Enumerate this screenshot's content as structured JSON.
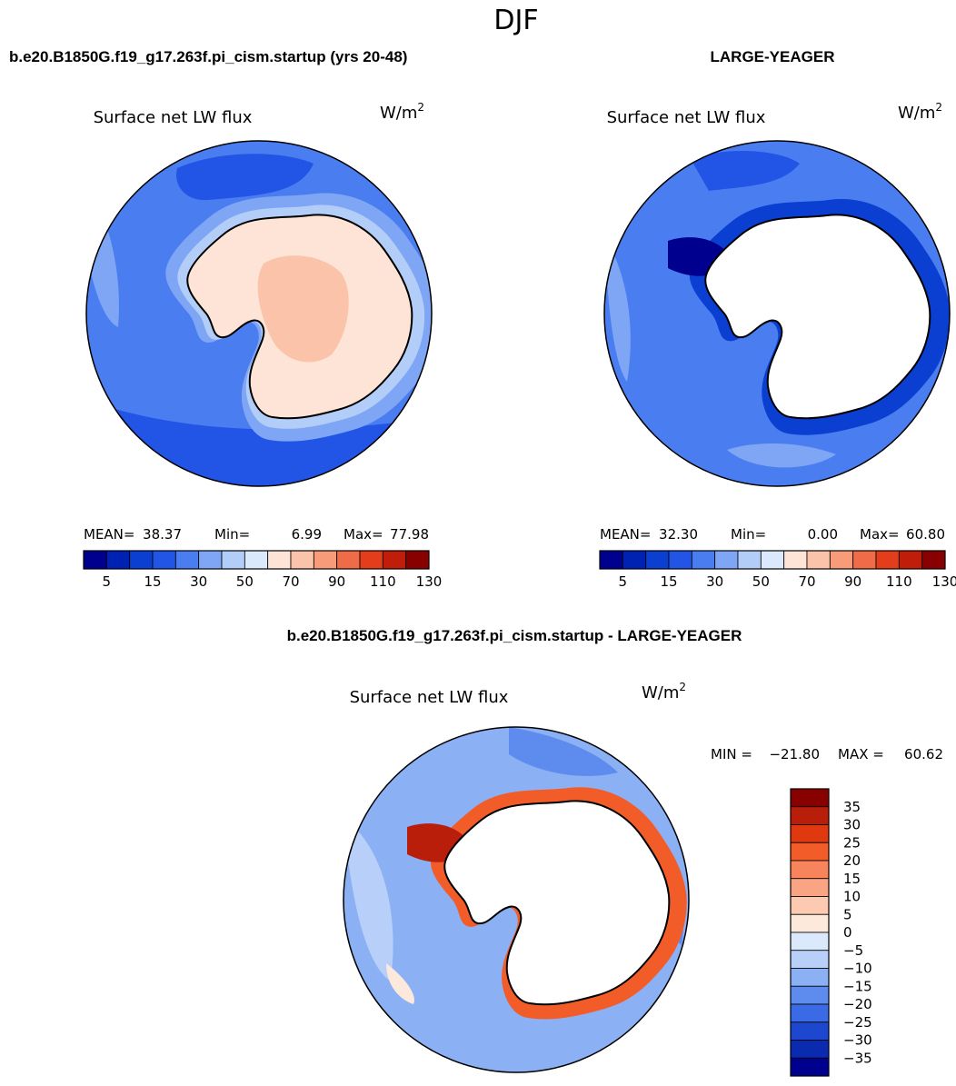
{
  "chart_data": [
    {
      "type": "heatmap",
      "projection": "south-polar-stereographic",
      "season": "DJF",
      "case_title": "b.e20.B1850G.f19_g17.263f.pi_cism.startup (yrs 20-48)",
      "variable": "Surface net LW flux",
      "units": "W/m",
      "units_sup": "2",
      "stats": {
        "mean_label": "MEAN=",
        "mean": "38.37",
        "min_label": "Min=",
        "min": "6.99",
        "max_label": "Max=",
        "max": "77.98"
      },
      "colorbar_levels": [
        5,
        10,
        15,
        20,
        30,
        40,
        50,
        60,
        70,
        80,
        90,
        100,
        110,
        120,
        130
      ],
      "colorbar_labels": [
        "5",
        "15",
        "30",
        "50",
        "70",
        "90",
        "110",
        "130"
      ],
      "colorbar_colors": [
        "#00008f",
        "#0022b3",
        "#0a3fd1",
        "#2255e6",
        "#4a7ef0",
        "#7fa6f5",
        "#b3cdf9",
        "#dbe9fc",
        "#fde4d6",
        "#fbc3a9",
        "#f79b78",
        "#f06b47",
        "#e33d1c",
        "#c01e0a",
        "#880000"
      ]
    },
    {
      "type": "heatmap",
      "projection": "south-polar-stereographic",
      "season": "DJF",
      "case_title": "LARGE-YEAGER",
      "variable": "Surface net LW flux",
      "units": "W/m",
      "units_sup": "2",
      "stats": {
        "mean_label": "MEAN=",
        "mean": "32.30",
        "min_label": "Min=",
        "min": "0.00",
        "max_label": "Max=",
        "max": "60.80"
      },
      "colorbar_levels": [
        5,
        10,
        15,
        20,
        30,
        40,
        50,
        60,
        70,
        80,
        90,
        100,
        110,
        120,
        130
      ],
      "colorbar_labels": [
        "5",
        "15",
        "30",
        "50",
        "70",
        "90",
        "110",
        "130"
      ],
      "colorbar_colors": [
        "#00008f",
        "#0022b3",
        "#0a3fd1",
        "#2255e6",
        "#4a7ef0",
        "#7fa6f5",
        "#b3cdf9",
        "#dbe9fc",
        "#fde4d6",
        "#fbc3a9",
        "#f79b78",
        "#f06b47",
        "#e33d1c",
        "#c01e0a",
        "#880000"
      ]
    },
    {
      "type": "heatmap",
      "projection": "south-polar-stereographic",
      "season": "DJF",
      "case_title": "b.e20.B1850G.f19_g17.263f.pi_cism.startup - LARGE-YEAGER",
      "variable": "Surface net LW flux",
      "units": "W/m",
      "units_sup": "2",
      "stats": {
        "min_label": "MIN =",
        "min": "−21.80",
        "max_label": "MAX =",
        "max": "60.62"
      },
      "colorbar_labels": [
        "35",
        "30",
        "25",
        "20",
        "15",
        "10",
        "5",
        "0",
        "−5",
        "−10",
        "−15",
        "−20",
        "−25",
        "−30",
        "−35"
      ],
      "colorbar_colors": [
        "#880000",
        "#b81e0a",
        "#e0380f",
        "#f25c28",
        "#f7845a",
        "#f9a583",
        "#fccab1",
        "#fde8dc",
        "#dbe9fc",
        "#b7cff9",
        "#8cb0f4",
        "#5d8cee",
        "#3a6ae6",
        "#1e47d0",
        "#0a2ab0",
        "#00008f"
      ]
    }
  ]
}
